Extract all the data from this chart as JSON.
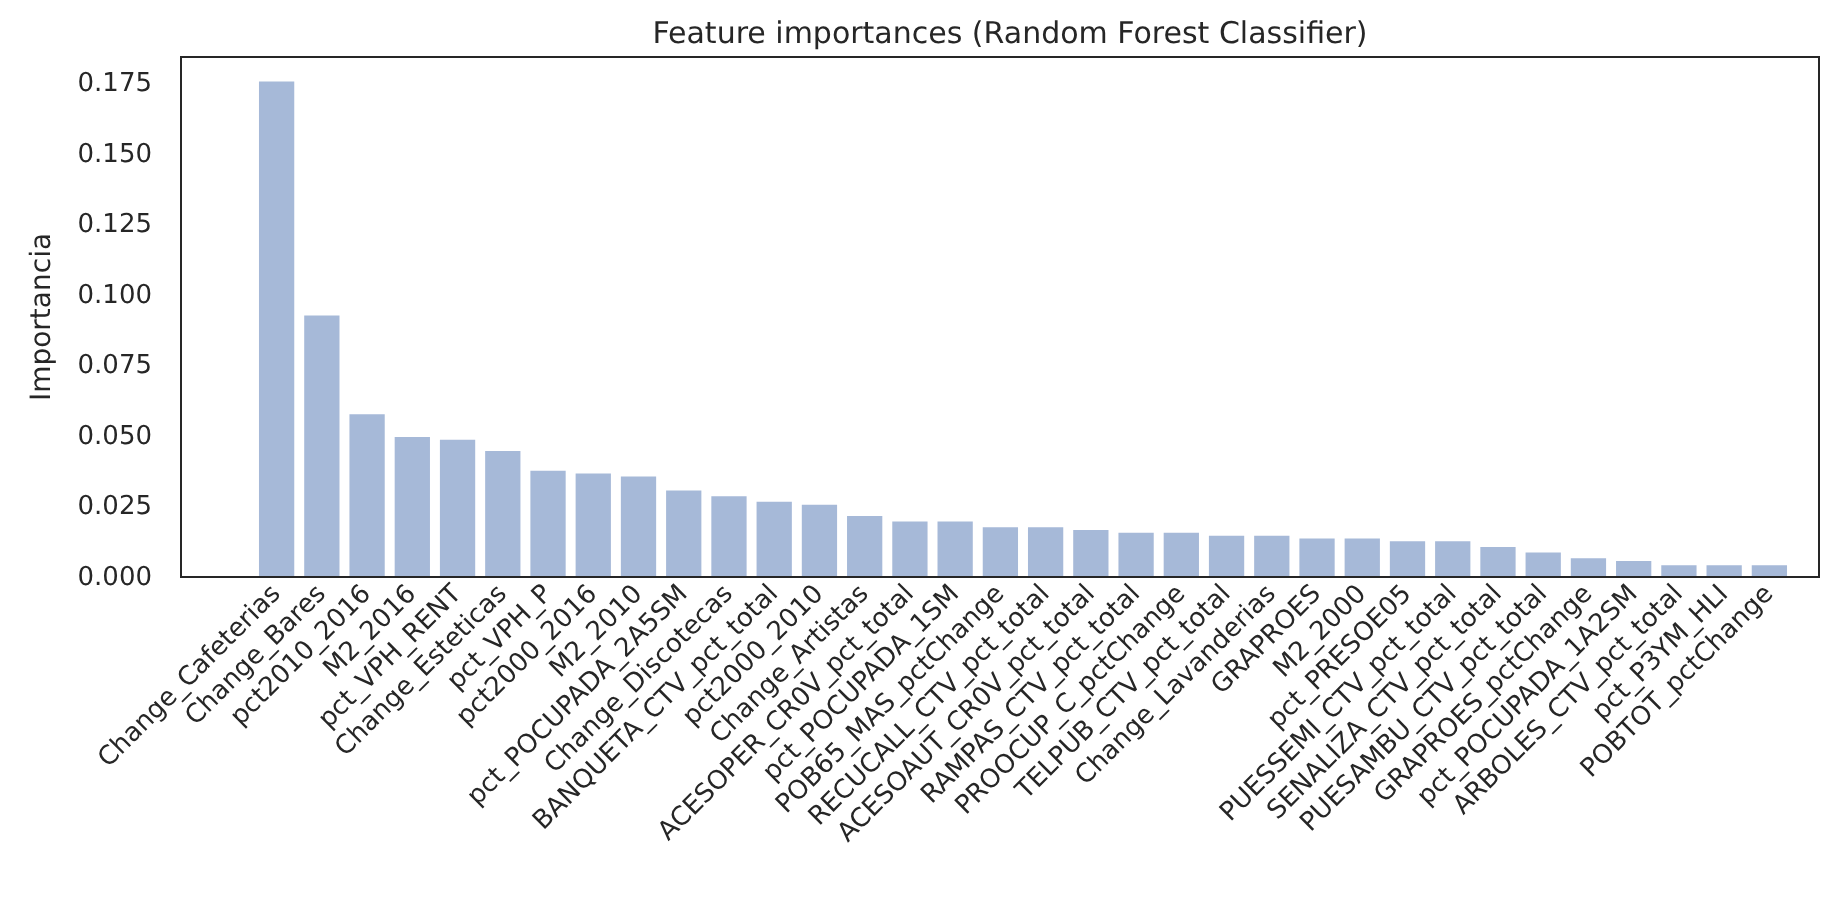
{
  "chart_data": {
    "type": "bar",
    "title": "Feature importances (Random Forest Classifier)",
    "ylabel": "Importancia",
    "categories": [
      "Change_Cafeterias",
      "Change_Bares",
      "pct2010_2016",
      "M2_2016",
      "pct_VPH_RENT",
      "Change_Esteticas",
      "pct_VPH_P",
      "pct2000_2016",
      "M2_2010",
      "pct_POCUPADA_2A5SM",
      "Change_Discotecas",
      "BANQUETA_CTV_pct_total",
      "pct2000_2010",
      "Change_Artistas",
      "ACESOPER_CR0V_pct_total",
      "pct_POCUPADA_1SM",
      "POB65_MAS_pctChange",
      "RECUCALL_CTV_pct_total",
      "ACESOAUT_CR0V_pct_total",
      "RAMPAS_CTV_pct_total",
      "PROOCUP_C_pctChange",
      "TELPUB_CTV_pct_total",
      "Change_Lavanderias",
      "GRAPROES",
      "M2_2000",
      "pct_PRESOE05",
      "PUESSEMI_CTV_pct_total",
      "SENALIZA_CTV_pct_total",
      "PUESAMBU_CTV_pct_total",
      "GRAPROES_pctChange",
      "pct_POCUPADA_1A2SM",
      "ARBOLES_CTV_pct_total",
      "pct_P3YM_HLI",
      "POBTOT_pctChange"
    ],
    "values": [
      0.176,
      0.093,
      0.058,
      0.05,
      0.049,
      0.045,
      0.038,
      0.037,
      0.036,
      0.031,
      0.029,
      0.027,
      0.026,
      0.022,
      0.02,
      0.02,
      0.018,
      0.018,
      0.017,
      0.016,
      0.016,
      0.015,
      0.015,
      0.014,
      0.014,
      0.013,
      0.013,
      0.011,
      0.009,
      0.007,
      0.006,
      0.0045,
      0.0045,
      0.0045
    ],
    "color": "#a6b9d8",
    "ylim": [
      0,
      0.185
    ],
    "yticks": [
      {
        "value": 0,
        "label": "0.000"
      },
      0.025,
      {
        "value": 0.05,
        "label": "0.050"
      },
      0.075,
      {
        "value": 0.1,
        "label": "0.100"
      },
      0.125,
      {
        "value": 0.15,
        "label": "0.150"
      },
      0.175
    ]
  }
}
